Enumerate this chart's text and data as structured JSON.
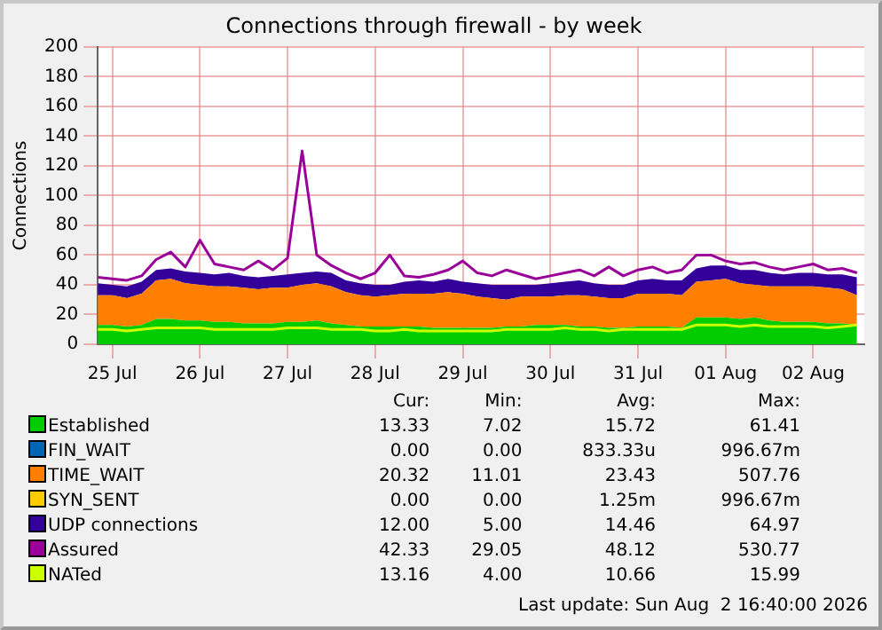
{
  "chart_data": {
    "type": "area",
    "title": "Connections through firewall - by week",
    "ylabel": "Connections",
    "stacked": true,
    "grid": true,
    "legend": "bottom",
    "x": [
      "2026-07-25T08:00",
      "2026-07-25T12:00",
      "2026-07-25T16:00",
      "2026-07-25T20:00",
      "2026-07-26T00:00",
      "2026-07-26T04:00",
      "2026-07-26T08:00",
      "2026-07-26T12:00",
      "2026-07-26T16:00",
      "2026-07-26T20:00",
      "2026-07-27T00:00",
      "2026-07-27T04:00",
      "2026-07-27T08:00",
      "2026-07-27T12:00",
      "2026-07-27T16:00",
      "2026-07-27T20:00",
      "2026-07-28T00:00",
      "2026-07-28T04:00",
      "2026-07-28T08:00",
      "2026-07-28T12:00",
      "2026-07-28T16:00",
      "2026-07-28T20:00",
      "2026-07-29T00:00",
      "2026-07-29T04:00",
      "2026-07-29T08:00",
      "2026-07-29T12:00",
      "2026-07-29T16:00",
      "2026-07-29T20:00",
      "2026-07-30T00:00",
      "2026-07-30T04:00",
      "2026-07-30T08:00",
      "2026-07-30T12:00",
      "2026-07-30T16:00",
      "2026-07-30T20:00",
      "2026-07-31T00:00",
      "2026-07-31T04:00",
      "2026-07-31T08:00",
      "2026-07-31T12:00",
      "2026-07-31T16:00",
      "2026-07-31T20:00",
      "2026-08-01T00:00",
      "2026-08-01T04:00",
      "2026-08-01T08:00",
      "2026-08-01T12:00",
      "2026-08-01T16:00",
      "2026-08-01T20:00",
      "2026-08-02T00:00",
      "2026-08-02T04:00",
      "2026-08-02T08:00",
      "2026-08-02T12:00",
      "2026-08-02T16:00",
      "2026-08-02T20:00",
      "2026-08-03T00:00"
    ],
    "xlim": [
      "2026-07-25T08:00",
      "2026-08-03T02:00"
    ],
    "xticks": [
      {
        "value": "2026-07-25T12:00",
        "label": "25 Jul"
      },
      {
        "value": "2026-07-26T12:00",
        "label": "26 Jul"
      },
      {
        "value": "2026-07-27T12:00",
        "label": "27 Jul"
      },
      {
        "value": "2026-07-28T12:00",
        "label": "28 Jul"
      },
      {
        "value": "2026-07-29T12:00",
        "label": "29 Jul"
      },
      {
        "value": "2026-07-30T12:00",
        "label": "30 Jul"
      },
      {
        "value": "2026-07-31T12:00",
        "label": "31 Jul"
      },
      {
        "value": "2026-08-01T12:00",
        "label": "01 Aug"
      },
      {
        "value": "2026-08-02T12:00",
        "label": "02 Aug"
      }
    ],
    "ylim": [
      0,
      200
    ],
    "yticks": [
      0,
      20,
      40,
      60,
      80,
      100,
      120,
      140,
      160,
      180,
      200
    ],
    "series": [
      {
        "name": "Established",
        "color": "#00cc00",
        "values": [
          13,
          13,
          12,
          13,
          17,
          17,
          16,
          16,
          15,
          15,
          14,
          14,
          14,
          15,
          15,
          16,
          14,
          13,
          12,
          12,
          12,
          12,
          12,
          11,
          11,
          11,
          11,
          11,
          12,
          12,
          13,
          13,
          13,
          12,
          12,
          11,
          11,
          12,
          12,
          12,
          11,
          18,
          18,
          18,
          17,
          18,
          16,
          15,
          15,
          15,
          14,
          14,
          13
        ]
      },
      {
        "name": "FIN_WAIT",
        "color": "#0066b3",
        "values": [
          null,
          null,
          null,
          null,
          null,
          null,
          null,
          null,
          null,
          null,
          null,
          null,
          null,
          null,
          null,
          null,
          null,
          null,
          null,
          null,
          null,
          null,
          null,
          null,
          null,
          null,
          null,
          null,
          null,
          null,
          null,
          null,
          null,
          null,
          null,
          null,
          null,
          null,
          null,
          null,
          null,
          null,
          null,
          null,
          null,
          null,
          null,
          null,
          null,
          null,
          null,
          null,
          null
        ]
      },
      {
        "name": "TIME_WAIT",
        "color": "#ff8000",
        "values": [
          20,
          20,
          19,
          21,
          26,
          27,
          25,
          24,
          24,
          24,
          24,
          23,
          24,
          23,
          25,
          25,
          25,
          22,
          21,
          20,
          21,
          22,
          22,
          23,
          24,
          23,
          21,
          20,
          18,
          20,
          19,
          19,
          20,
          21,
          20,
          20,
          20,
          22,
          22,
          22,
          22,
          24,
          25,
          26,
          24,
          22,
          23,
          24,
          24,
          24,
          24,
          23,
          20
        ]
      },
      {
        "name": "SYN_SENT",
        "color": "#ffcc00",
        "values": [
          null,
          null,
          null,
          null,
          null,
          null,
          null,
          null,
          null,
          null,
          null,
          null,
          null,
          null,
          null,
          null,
          null,
          null,
          null,
          null,
          null,
          null,
          null,
          null,
          null,
          null,
          null,
          null,
          null,
          null,
          null,
          null,
          null,
          null,
          null,
          null,
          null,
          null,
          null,
          null,
          null,
          null,
          null,
          null,
          null,
          null,
          null,
          null,
          null,
          null,
          null,
          null,
          null
        ]
      },
      {
        "name": "UDP connections",
        "color": "#330099",
        "values": [
          8,
          7,
          8,
          8,
          7,
          7,
          8,
          8,
          8,
          9,
          8,
          8,
          8,
          9,
          8,
          8,
          9,
          8,
          8,
          8,
          7,
          8,
          9,
          8,
          9,
          8,
          9,
          9,
          10,
          8,
          8,
          9,
          9,
          10,
          9,
          9,
          9,
          9,
          10,
          9,
          10,
          9,
          10,
          9,
          9,
          10,
          9,
          8,
          9,
          9,
          9,
          10,
          12
        ]
      },
      {
        "name": "Assured",
        "type": "line",
        "color": "#990099",
        "values": [
          45,
          44,
          43,
          46,
          57,
          62,
          52,
          70,
          54,
          52,
          50,
          56,
          50,
          58,
          130,
          60,
          53,
          48,
          44,
          48,
          60,
          46,
          45,
          47,
          50,
          56,
          48,
          46,
          50,
          47,
          44,
          46,
          48,
          50,
          46,
          52,
          46,
          50,
          52,
          48,
          50,
          60,
          60,
          56,
          54,
          55,
          52,
          50,
          52,
          54,
          50,
          51,
          48
        ]
      },
      {
        "name": "NATed",
        "type": "line",
        "color": "#ccff00",
        "values": [
          10,
          10,
          9,
          10,
          11,
          11,
          11,
          11,
          10,
          10,
          10,
          10,
          10,
          11,
          11,
          11,
          10,
          10,
          10,
          9,
          9,
          10,
          9,
          9,
          9,
          9,
          9,
          9,
          10,
          10,
          10,
          10,
          11,
          10,
          10,
          9,
          10,
          10,
          10,
          10,
          10,
          13,
          13,
          13,
          12,
          13,
          12,
          12,
          12,
          12,
          11,
          12,
          13
        ]
      }
    ],
    "annotations": [
      "Cur:",
      "Min:",
      "Avg:",
      "Max:",
      "13.33",
      "7.02",
      "15.72",
      "61.41",
      "0.00",
      "0.00",
      "833.33u",
      "996.67m",
      "20.32",
      "11.01",
      "23.43",
      "507.76",
      "0.00",
      "0.00",
      "1.25m",
      "996.67m",
      "12.00",
      "5.00",
      "14.46",
      "64.97",
      "42.33",
      "29.05",
      "48.12",
      "530.77",
      "13.16",
      "4.00",
      "10.66",
      "15.99",
      "Last update: Sun Aug  2 16:40:00 2026"
    ]
  }
}
